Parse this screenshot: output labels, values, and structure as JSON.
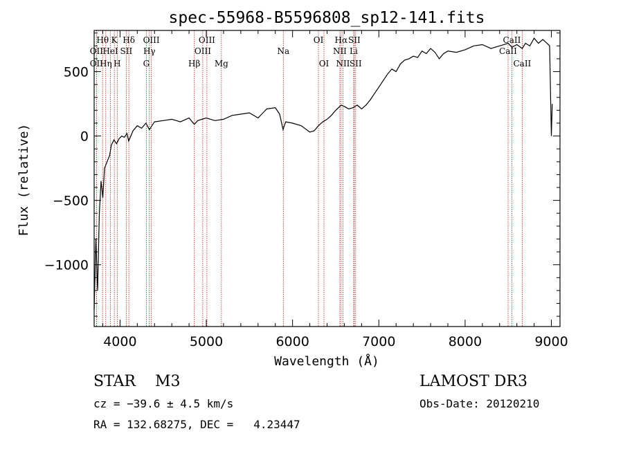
{
  "chart_data": {
    "type": "line",
    "title": "spec-55968-B5596808_sp12-141.fits",
    "xlabel": "Wavelength (Å)",
    "ylabel": "Flux (relative)",
    "xlim": [
      3700,
      9100
    ],
    "ylim": [
      -1480,
      820
    ],
    "xticks": [
      4000,
      5000,
      6000,
      7000,
      8000,
      9000
    ],
    "yticks": [
      -1000,
      -500,
      0,
      500
    ],
    "series": [
      {
        "name": "flux",
        "x": [
          3700,
          3720,
          3740,
          3760,
          3780,
          3800,
          3820,
          3850,
          3880,
          3900,
          3930,
          3960,
          3990,
          4020,
          4050,
          4080,
          4100,
          4150,
          4200,
          4250,
          4300,
          4340,
          4400,
          4500,
          4600,
          4700,
          4800,
          4861,
          4900,
          5000,
          5100,
          5200,
          5300,
          5400,
          5500,
          5600,
          5700,
          5800,
          5850,
          5890,
          5920,
          6000,
          6100,
          6200,
          6250,
          6300,
          6350,
          6400,
          6450,
          6500,
          6563,
          6600,
          6650,
          6700,
          6750,
          6800,
          6850,
          6900,
          6950,
          7000,
          7050,
          7100,
          7150,
          7200,
          7250,
          7300,
          7350,
          7400,
          7450,
          7500,
          7550,
          7600,
          7650,
          7700,
          7750,
          7800,
          7900,
          8000,
          8100,
          8200,
          8300,
          8400,
          8500,
          8542,
          8600,
          8662,
          8700,
          8750,
          8800,
          8850,
          8900,
          8950,
          8980,
          9000,
          9010
        ],
        "values": [
          -1350,
          -800,
          -1200,
          -600,
          -350,
          -480,
          -250,
          -200,
          -150,
          -70,
          -30,
          -60,
          -20,
          0,
          -10,
          20,
          -40,
          40,
          80,
          60,
          100,
          50,
          110,
          120,
          130,
          110,
          140,
          90,
          120,
          140,
          120,
          130,
          160,
          170,
          180,
          140,
          210,
          220,
          170,
          50,
          110,
          100,
          80,
          30,
          40,
          80,
          110,
          130,
          160,
          200,
          240,
          230,
          210,
          220,
          240,
          210,
          240,
          280,
          330,
          380,
          430,
          480,
          520,
          500,
          560,
          590,
          600,
          620,
          610,
          660,
          640,
          680,
          650,
          600,
          640,
          660,
          650,
          670,
          700,
          710,
          680,
          700,
          720,
          690,
          710,
          680,
          720,
          700,
          760,
          720,
          750,
          720,
          700,
          0,
          250
        ]
      }
    ],
    "lines": [
      {
        "label": "Hθ",
        "wl": 3798,
        "row": 1
      },
      {
        "label": "OII",
        "wl": 3727,
        "row": 2
      },
      {
        "label": "OII",
        "wl": 3727,
        "row": 3
      },
      {
        "label": "Hη",
        "wl": 3835,
        "row": 3
      },
      {
        "label": "HeI",
        "wl": 3889,
        "row": 2
      },
      {
        "label": "K",
        "wl": 3934,
        "row": 1
      },
      {
        "label": "H",
        "wl": 3968,
        "row": 3
      },
      {
        "label": "SII",
        "wl": 4072,
        "row": 2
      },
      {
        "label": "Hδ",
        "wl": 4102,
        "row": 1
      },
      {
        "label": "OIII",
        "wl": 4363,
        "row": 1
      },
      {
        "label": "Hγ",
        "wl": 4340,
        "row": 2
      },
      {
        "label": "G",
        "wl": 4305,
        "row": 3
      },
      {
        "label": "Hβ",
        "wl": 4861,
        "row": 3
      },
      {
        "label": "OIII",
        "wl": 5007,
        "row": 1
      },
      {
        "label": "OIII",
        "wl": 4959,
        "row": 2
      },
      {
        "label": "Mg",
        "wl": 5175,
        "row": 3
      },
      {
        "label": "Na",
        "wl": 5893,
        "row": 2
      },
      {
        "label": "OI",
        "wl": 6300,
        "row": 1
      },
      {
        "label": "OI",
        "wl": 6364,
        "row": 3
      },
      {
        "label": "Hα",
        "wl": 6563,
        "row": 1
      },
      {
        "label": "NII",
        "wl": 6548,
        "row": 2
      },
      {
        "label": "NII",
        "wl": 6584,
        "row": 3
      },
      {
        "label": "SII",
        "wl": 6716,
        "row": 1
      },
      {
        "label": "Li",
        "wl": 6708,
        "row": 2
      },
      {
        "label": "SII",
        "wl": 6731,
        "row": 3
      },
      {
        "label": "CaII",
        "wl": 8542,
        "row": 1
      },
      {
        "label": "CaII",
        "wl": 8498,
        "row": 2
      },
      {
        "label": "CaII",
        "wl": 8662,
        "row": 3
      }
    ],
    "colors": {
      "spectrum": "#000000",
      "line_marker": "#b22222",
      "axis": "#000000"
    }
  },
  "info": {
    "class_line": "STAR    M3",
    "survey": "LAMOST DR3",
    "cz": "cz = −39.6 ± 4.5 km/s",
    "obs_date": "Obs-Date: 20120210",
    "coords": "RA = 132.68275, DEC =   4.23447"
  }
}
